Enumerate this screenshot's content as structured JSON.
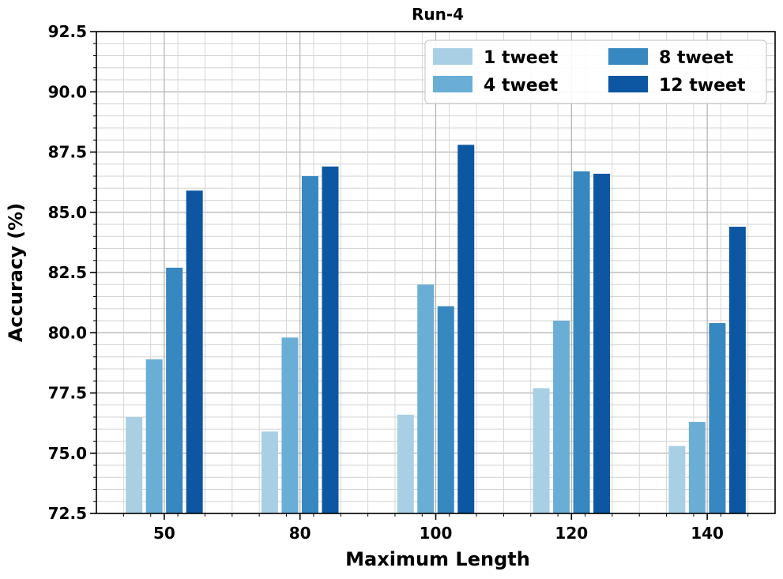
{
  "chart_data": {
    "type": "bar",
    "title": "Run-4",
    "xlabel": "Maximum Length",
    "ylabel": "Accuracy (%)",
    "categories": [
      "50",
      "80",
      "100",
      "120",
      "140"
    ],
    "ylim": [
      72.5,
      92.5
    ],
    "yticks": [
      "72.5",
      "75.0",
      "77.5",
      "80.0",
      "82.5",
      "85.0",
      "87.5",
      "90.0",
      "92.5"
    ],
    "grid": true,
    "legend_position": "top-right",
    "series": [
      {
        "name": "1 tweet",
        "color": "#a9cfe5",
        "values": [
          76.5,
          75.9,
          76.6,
          77.7,
          75.3
        ]
      },
      {
        "name": "4 tweet",
        "color": "#6aaed6",
        "values": [
          78.9,
          79.8,
          82.0,
          80.5,
          76.3
        ]
      },
      {
        "name": "8 tweet",
        "color": "#3787c0",
        "values": [
          82.7,
          86.5,
          81.1,
          86.7,
          80.4
        ]
      },
      {
        "name": "12 tweet",
        "color": "#0d56a1",
        "values": [
          85.9,
          86.9,
          87.8,
          86.6,
          84.4
        ]
      }
    ]
  }
}
